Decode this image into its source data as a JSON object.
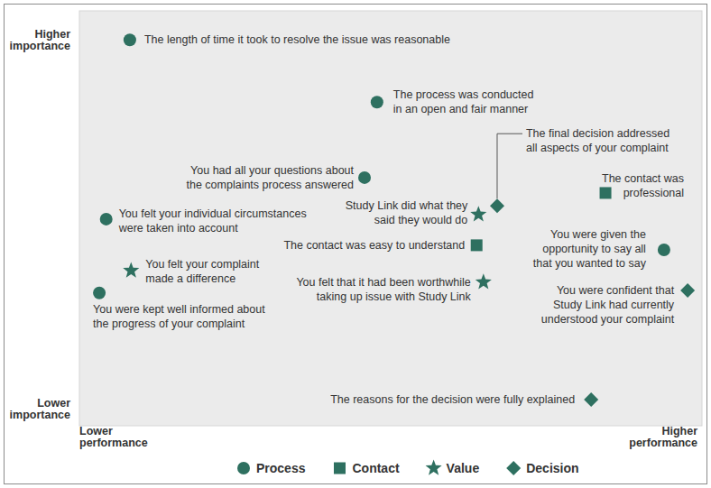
{
  "chart_data": {
    "type": "scatter",
    "x_label": [
      "Lower performance",
      "Higher performance"
    ],
    "y_label": [
      "Lower importance",
      "Higher importance"
    ],
    "xlim": [
      0,
      100
    ],
    "ylim": [
      0,
      100
    ],
    "tick_labels": false,
    "grid": false,
    "legend": "bottom",
    "series": [
      {
        "name": "Process",
        "color": "#2e7060",
        "marker": "circle",
        "x": [
          8.1,
          47.8,
          45.8,
          4.3,
          93.9,
          3.2
        ],
        "y": [
          93.0,
          78.0,
          59.8,
          49.8,
          42.4,
          32.0
        ],
        "labels": [
          [
            "The length of time it took to resolve the issue was reasonable"
          ],
          [
            "The process was conducted",
            "in an open and fair manner"
          ],
          [
            "You had all your questions about",
            "the complaints process answered"
          ],
          [
            "You felt your individual circumstances",
            "were taken into account"
          ],
          [
            "You were given the",
            "opportunity to say all",
            "that you wanted to say"
          ],
          [
            "You were kept well informed about",
            "the progress of your complaint"
          ]
        ]
      },
      {
        "name": "Contact",
        "color": "#2e7060",
        "marker": "square",
        "x": [
          84.5,
          63.8
        ],
        "y": [
          56.1,
          43.5
        ],
        "labels": [
          [
            "The contact was",
            "professional"
          ],
          [
            "The contact was easy to understand"
          ]
        ]
      },
      {
        "name": "Value",
        "color": "#2e7060",
        "marker": "star",
        "x": [
          64.1,
          8.3,
          64.9
        ],
        "y": [
          50.9,
          37.4,
          34.6
        ],
        "labels": [
          [
            "Study Link did what they",
            "said they would do"
          ],
          [
            "You felt your complaint",
            "made a difference"
          ],
          [
            "You felt that it had been worthwhile",
            "taking up issue with Study Link"
          ]
        ]
      },
      {
        "name": "Decision",
        "color": "#2e7060",
        "marker": "diamond",
        "x": [
          67.1,
          97.7,
          82.2
        ],
        "y": [
          53.0,
          32.6,
          6.3
        ],
        "labels": [
          [
            "The final decision addressed",
            "all aspects of your complaint"
          ],
          [
            "You were confident that",
            "Study Link had currently",
            "understood your complaint"
          ],
          [
            "The reasons for the decision were fully explained"
          ]
        ]
      }
    ]
  }
}
